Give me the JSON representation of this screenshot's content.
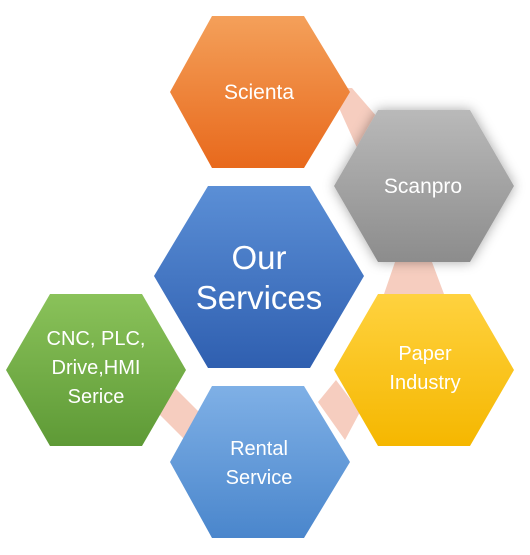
{
  "center": {
    "lines": [
      "Our",
      "Services"
    ],
    "fill_top": "#5b8fd6",
    "fill_bottom": "#2f5fb0"
  },
  "nodes": [
    {
      "id": "scienta",
      "lines": [
        "Scienta"
      ],
      "fill_top": "#f4a05a",
      "fill_bottom": "#e8691c"
    },
    {
      "id": "scanpro",
      "lines": [
        "Scanpro"
      ],
      "fill_top": "#b9b9b9",
      "fill_bottom": "#8c8c8c"
    },
    {
      "id": "paper-industry",
      "lines": [
        "Paper",
        "Industry"
      ],
      "fill_top": "#ffd23f",
      "fill_bottom": "#f5b700"
    },
    {
      "id": "rental-service",
      "lines": [
        "Rental",
        "Service"
      ],
      "fill_top": "#7fb0e6",
      "fill_bottom": "#4a86cc"
    },
    {
      "id": "cnc-plc",
      "lines": [
        "CNC, PLC,",
        "Drive,HMI",
        "Serice"
      ],
      "fill_top": "#8ac25a",
      "fill_bottom": "#5e9a36"
    }
  ],
  "connector_color": "#f4c4b4"
}
